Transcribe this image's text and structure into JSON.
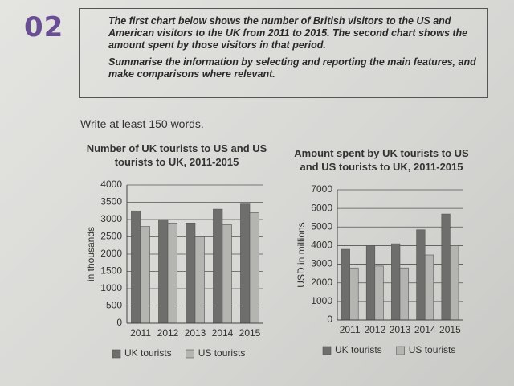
{
  "exercise": {
    "number": "02",
    "prompt": [
      "The first chart below shows the number of British visitors to the US and American visitors to the UK from 2011 to 2015. The second chart shows the amount spent by those visitors in that period.",
      "Summarise the information by selecting and reporting the main features, and make comparisons where relevant."
    ],
    "instruction": "Write at least 150 words."
  },
  "chart_data": [
    {
      "type": "bar",
      "title": "Number of UK tourists to US and US tourists to UK, 2011-2015",
      "y_label": "in thousands",
      "categories": [
        "2011",
        "2012",
        "2013",
        "2014",
        "2015"
      ],
      "series": [
        {
          "name": "UK tourists",
          "color": "#6e6e6c",
          "values": [
            3250,
            3000,
            2900,
            3300,
            3450
          ]
        },
        {
          "name": "US tourists",
          "color": "#b4b4b1",
          "values": [
            2800,
            2900,
            2500,
            2850,
            3200
          ]
        }
      ],
      "ylim": [
        0,
        4000
      ],
      "yticks": [
        0,
        500,
        1000,
        1500,
        2000,
        2500,
        3000,
        3500,
        4000
      ],
      "grid": true,
      "legend": "bottom"
    },
    {
      "type": "bar",
      "title": "Amount spent by UK tourists to US and US tourists to UK, 2011-2015",
      "y_label": "USD in millions",
      "categories": [
        "2011",
        "2012",
        "2013",
        "2014",
        "2015"
      ],
      "series": [
        {
          "name": "UK tourists",
          "color": "#6e6e6c",
          "values": [
            3800,
            4000,
            4100,
            4850,
            5700
          ]
        },
        {
          "name": "US tourists",
          "color": "#b4b4b1",
          "values": [
            2800,
            2900,
            2800,
            3500,
            4000
          ]
        }
      ],
      "ylim": [
        0,
        7000
      ],
      "yticks": [
        0,
        1000,
        2000,
        3000,
        4000,
        5000,
        6000,
        7000
      ],
      "grid": true,
      "legend": "bottom"
    }
  ]
}
